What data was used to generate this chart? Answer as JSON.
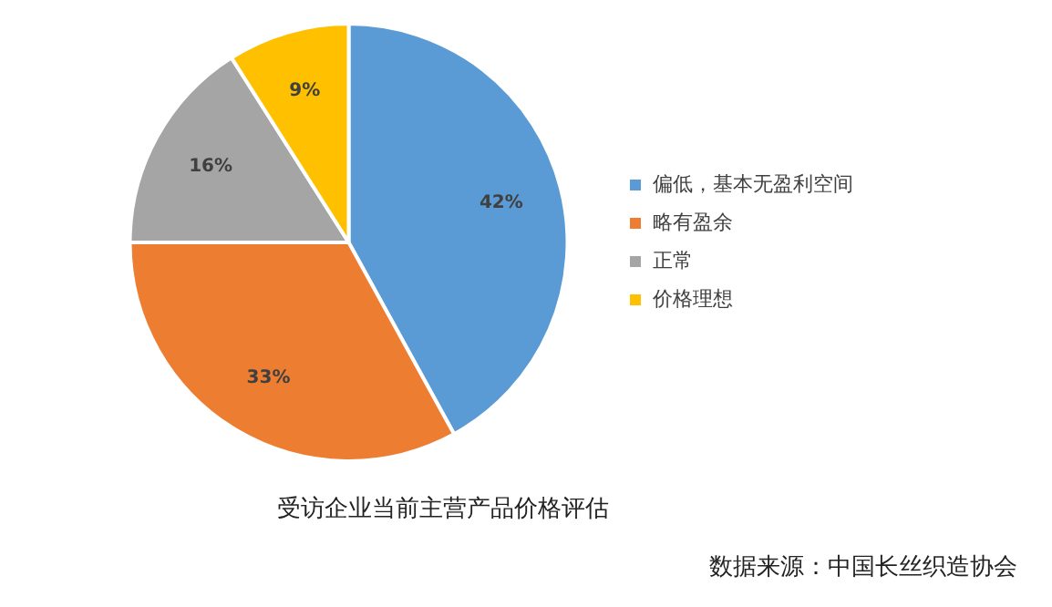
{
  "chart_data": {
    "type": "pie",
    "title": "受访企业当前主营产品价格评估",
    "categories": [
      "偏低，基本无盈利空间",
      "略有盈余",
      "正常",
      "价格理想"
    ],
    "values": [
      42,
      33,
      16,
      9
    ],
    "colors": [
      "#5b9bd5",
      "#ed7d31",
      "#a5a5a5",
      "#ffc000"
    ],
    "value_labels": [
      "42%",
      "33%",
      "16%",
      "9%"
    ],
    "legend": "right",
    "annotations": [
      "数据来源：中国长丝织造协会"
    ]
  }
}
